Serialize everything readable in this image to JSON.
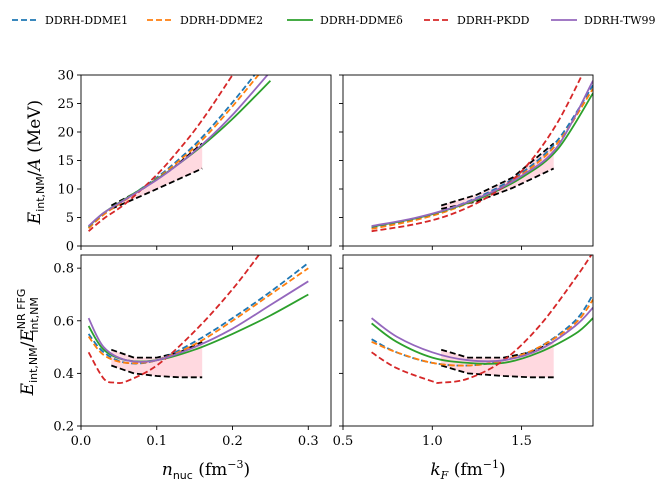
{
  "chart_data": [
    {
      "type": "line",
      "panel": "top-left",
      "xlabel": "",
      "ylabel": "E_int,NM/A (MeV)",
      "xlim": [
        0.0,
        0.33
      ],
      "ylim": [
        0,
        30
      ],
      "xticks": [
        0.0,
        0.1,
        0.2,
        0.3
      ],
      "yticks": [
        "0",
        "5",
        "10",
        "15",
        "20",
        "25",
        "30"
      ],
      "series": [
        {
          "name": "DDRH-DDME1",
          "x": [
            0.01,
            0.03,
            0.06,
            0.1,
            0.13,
            0.16,
            0.2,
            0.25
          ],
          "values": [
            3.2,
            5.6,
            8.3,
            12.0,
            15.3,
            19.1,
            25.2,
            33.5
          ]
        },
        {
          "name": "DDRH-DDME2",
          "x": [
            0.01,
            0.03,
            0.06,
            0.1,
            0.13,
            0.16,
            0.2,
            0.25
          ],
          "values": [
            3.1,
            5.5,
            8.2,
            11.8,
            15.0,
            18.6,
            24.5,
            32.6
          ]
        },
        {
          "name": "DDRH-DDMEδ",
          "x": [
            0.01,
            0.03,
            0.06,
            0.1,
            0.13,
            0.16,
            0.2,
            0.25
          ],
          "values": [
            3.4,
            5.8,
            8.4,
            11.7,
            14.5,
            17.6,
            22.3,
            29.0
          ]
        },
        {
          "name": "DDRH-PKDD",
          "x": [
            0.01,
            0.03,
            0.06,
            0.1,
            0.13,
            0.16,
            0.2,
            0.25
          ],
          "values": [
            2.6,
            4.8,
            7.6,
            12.5,
            17.0,
            22.1,
            30.0,
            40.0
          ]
        },
        {
          "name": "DDRH-TW99",
          "x": [
            0.01,
            0.03,
            0.06,
            0.1,
            0.13,
            0.16,
            0.2,
            0.25
          ],
          "values": [
            3.5,
            5.8,
            8.3,
            11.6,
            14.5,
            17.8,
            23.0,
            30.6
          ]
        }
      ],
      "band": {
        "x": [
          0.04,
          0.08,
          0.12,
          0.16
        ],
        "upper": [
          7.1,
          9.9,
          13.5,
          18.0
        ],
        "lower": [
          6.5,
          8.8,
          11.2,
          13.6
        ]
      }
    },
    {
      "type": "line",
      "panel": "top-right",
      "xlabel": "",
      "ylabel": "",
      "xlim": [
        0.5,
        1.9
      ],
      "ylim": [
        0,
        30
      ],
      "series": [
        {
          "name": "DDRH-DDME1",
          "x": [
            0.66,
            0.9,
            1.1,
            1.3,
            1.5,
            1.7,
            1.9
          ],
          "values": [
            3.2,
            4.7,
            6.6,
            9.2,
            12.8,
            18.5,
            28.2
          ]
        },
        {
          "name": "DDRH-DDME2",
          "x": [
            0.66,
            0.9,
            1.1,
            1.3,
            1.5,
            1.7,
            1.9
          ],
          "values": [
            3.0,
            4.5,
            6.3,
            8.9,
            12.5,
            18.0,
            27.6
          ]
        },
        {
          "name": "DDRH-DDMEδ",
          "x": [
            0.66,
            0.9,
            1.1,
            1.3,
            1.5,
            1.7,
            1.9
          ],
          "values": [
            3.4,
            4.8,
            6.5,
            8.8,
            12.0,
            16.9,
            26.8
          ]
        },
        {
          "name": "DDRH-PKDD",
          "x": [
            0.66,
            0.9,
            1.1,
            1.3,
            1.5,
            1.7,
            1.9
          ],
          "values": [
            2.6,
            3.8,
            5.5,
            8.4,
            13.1,
            21.6,
            34.0
          ]
        },
        {
          "name": "DDRH-TW99",
          "x": [
            0.66,
            0.9,
            1.1,
            1.3,
            1.5,
            1.7,
            1.9
          ],
          "values": [
            3.5,
            4.9,
            6.6,
            9.0,
            12.3,
            17.4,
            29.0
          ]
        }
      ],
      "band": {
        "x": [
          1.05,
          1.25,
          1.45,
          1.68
        ],
        "upper": [
          7.1,
          9.0,
          12.0,
          18.0
        ],
        "lower": [
          6.5,
          7.8,
          10.2,
          13.6
        ]
      }
    },
    {
      "type": "line",
      "panel": "bottom-left",
      "xlabel": "n_nuc (fm^-3)",
      "ylabel": "E_int,NM/E_int,NM^NR FFG",
      "xlim": [
        0.0,
        0.33
      ],
      "ylim": [
        0.2,
        0.85
      ],
      "xticks": [
        "0.0",
        "0.1",
        "0.2",
        "0.3"
      ],
      "yticks": [
        "0.2",
        "0.4",
        "0.6",
        "0.8"
      ],
      "series": [
        {
          "name": "DDRH-DDME1",
          "x": [
            0.01,
            0.03,
            0.06,
            0.1,
            0.15,
            0.2,
            0.25,
            0.3
          ],
          "values": [
            0.55,
            0.48,
            0.44,
            0.45,
            0.52,
            0.61,
            0.71,
            0.82
          ]
        },
        {
          "name": "DDRH-DDME2",
          "x": [
            0.01,
            0.03,
            0.06,
            0.1,
            0.15,
            0.2,
            0.25,
            0.3
          ],
          "values": [
            0.54,
            0.47,
            0.44,
            0.45,
            0.51,
            0.6,
            0.7,
            0.8
          ]
        },
        {
          "name": "DDRH-DDMEδ",
          "x": [
            0.01,
            0.03,
            0.06,
            0.1,
            0.15,
            0.2,
            0.25,
            0.3
          ],
          "values": [
            0.58,
            0.49,
            0.45,
            0.45,
            0.49,
            0.55,
            0.62,
            0.7
          ]
        },
        {
          "name": "DDRH-PKDD",
          "x": [
            0.01,
            0.03,
            0.045,
            0.06,
            0.1,
            0.15,
            0.2,
            0.24
          ],
          "values": [
            0.48,
            0.38,
            0.365,
            0.37,
            0.43,
            0.56,
            0.72,
            0.87
          ]
        },
        {
          "name": "DDRH-TW99",
          "x": [
            0.01,
            0.03,
            0.06,
            0.1,
            0.15,
            0.2,
            0.25,
            0.3
          ],
          "values": [
            0.61,
            0.5,
            0.45,
            0.45,
            0.5,
            0.57,
            0.66,
            0.75
          ]
        }
      ],
      "band": {
        "x": [
          0.04,
          0.07,
          0.1,
          0.13,
          0.16
        ],
        "upper": [
          0.49,
          0.46,
          0.46,
          0.48,
          0.52
        ],
        "lower": [
          0.43,
          0.4,
          0.39,
          0.385,
          0.385
        ]
      }
    },
    {
      "type": "line",
      "panel": "bottom-right",
      "xlabel": "k_F (fm^-1)",
      "ylabel": "",
      "xlim": [
        0.5,
        1.9
      ],
      "ylim": [
        0.2,
        0.85
      ],
      "xticks": [
        "0.5",
        "1.0",
        "1.5"
      ],
      "series": [
        {
          "name": "DDRH-DDME1",
          "x": [
            0.66,
            0.8,
            1.0,
            1.2,
            1.4,
            1.6,
            1.8,
            1.9
          ],
          "values": [
            0.53,
            0.48,
            0.44,
            0.43,
            0.45,
            0.5,
            0.6,
            0.7
          ]
        },
        {
          "name": "DDRH-DDME2",
          "x": [
            0.66,
            0.8,
            1.0,
            1.2,
            1.4,
            1.6,
            1.8,
            1.9
          ],
          "values": [
            0.52,
            0.48,
            0.44,
            0.43,
            0.45,
            0.5,
            0.59,
            0.68
          ]
        },
        {
          "name": "DDRH-DDMEδ",
          "x": [
            0.66,
            0.8,
            1.0,
            1.2,
            1.4,
            1.6,
            1.8,
            1.9
          ],
          "values": [
            0.59,
            0.52,
            0.46,
            0.44,
            0.44,
            0.48,
            0.55,
            0.61
          ]
        },
        {
          "name": "DDRH-PKDD",
          "x": [
            0.66,
            0.8,
            1.0,
            1.05,
            1.2,
            1.4,
            1.6,
            1.8,
            1.9
          ],
          "values": [
            0.48,
            0.42,
            0.37,
            0.365,
            0.38,
            0.45,
            0.58,
            0.76,
            0.86
          ]
        },
        {
          "name": "DDRH-TW99",
          "x": [
            0.66,
            0.8,
            1.0,
            1.2,
            1.4,
            1.6,
            1.8,
            1.9
          ],
          "values": [
            0.61,
            0.54,
            0.48,
            0.45,
            0.45,
            0.49,
            0.58,
            0.65
          ]
        }
      ],
      "band": {
        "x": [
          1.05,
          1.2,
          1.4,
          1.55,
          1.68
        ],
        "upper": [
          0.49,
          0.46,
          0.46,
          0.48,
          0.52
        ],
        "lower": [
          0.43,
          0.4,
          0.39,
          0.385,
          0.385
        ]
      }
    }
  ],
  "legend": {
    "placement": "top",
    "entries": [
      {
        "label": "DDRH-DDME1",
        "color": "#1f77b4",
        "dash": true
      },
      {
        "label": "DDRH-DDME2",
        "color": "#ff7f0e",
        "dash": true
      },
      {
        "label": "DDRH-DDMEδ",
        "color": "#2ca02c",
        "dash": false
      },
      {
        "label": "DDRH-PKDD",
        "color": "#d62728",
        "dash": true
      },
      {
        "label": "DDRH-TW99",
        "color": "#9467bd",
        "dash": false
      }
    ]
  },
  "colors": {
    "DDRH-DDME1": "#1f77b4",
    "DDRH-DDME2": "#ff7f0e",
    "DDRH-DDMEδ": "#2ca02c",
    "DDRH-PKDD": "#d62728",
    "DDRH-TW99": "#9467bd",
    "band": "#ffc0cb"
  }
}
